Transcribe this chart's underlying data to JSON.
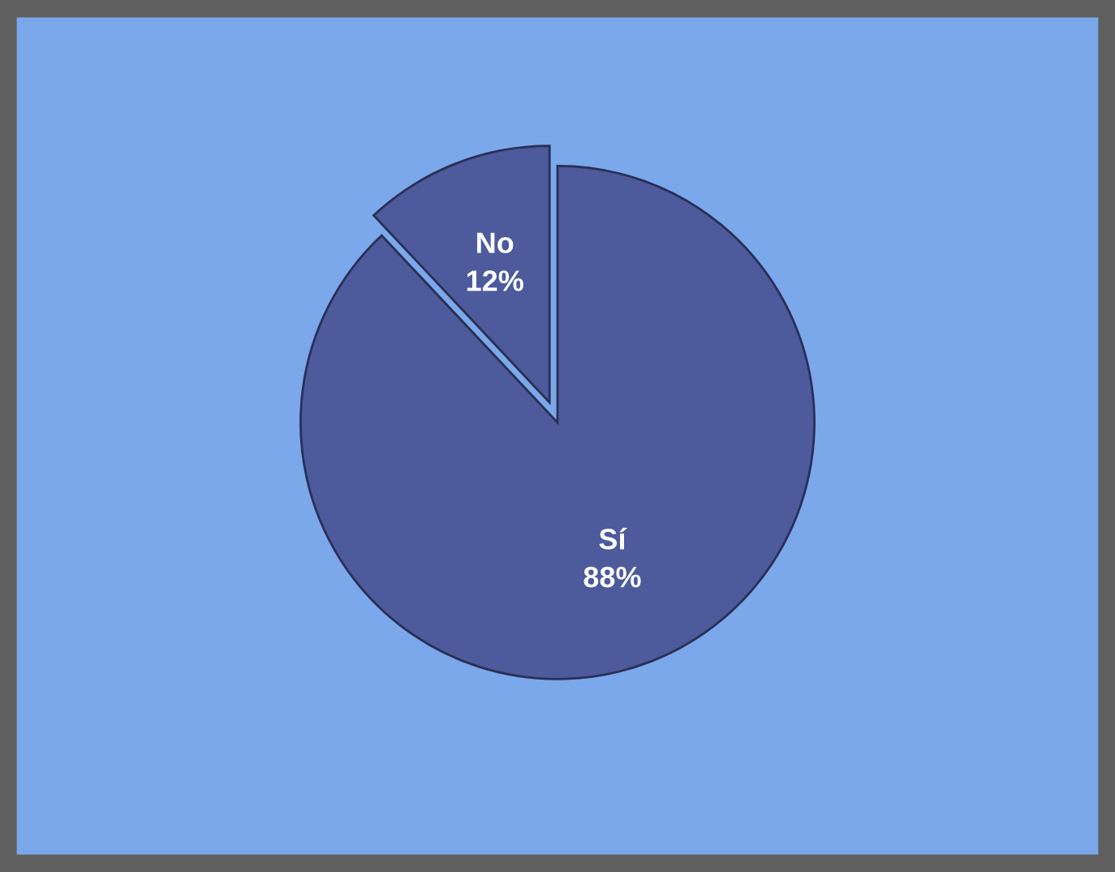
{
  "chart_data": {
    "type": "pie",
    "categories": [
      "No",
      "Sí"
    ],
    "values": [
      12,
      88
    ],
    "value_labels": [
      "12%",
      "88%"
    ],
    "colors": [
      "#4d5b9c",
      "#4d5b9c"
    ],
    "legend": false
  }
}
